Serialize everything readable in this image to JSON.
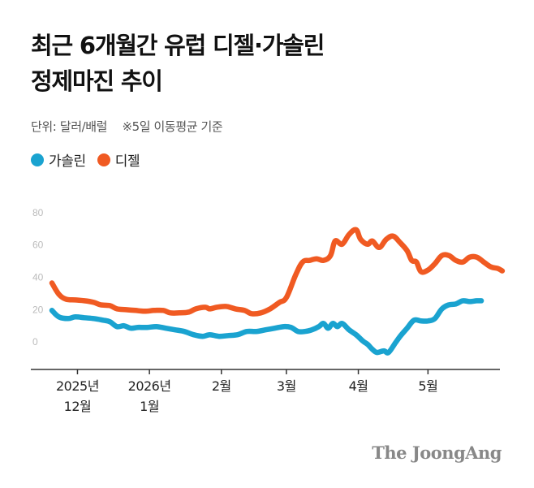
{
  "header": {
    "title_line1": "최근 6개월간 유럽 디젤·가솔린",
    "title_line2": "정제마진 추이",
    "unit": "단위: 달러/배럴",
    "note": "※5일 이동평균 기준"
  },
  "legend": {
    "gasoline": "가솔린",
    "diesel": "디젤"
  },
  "brand": "The JoongAng",
  "colors": {
    "gasoline": "#1aa3d0",
    "diesel": "#f05a22",
    "axis": "#333333",
    "tick_label": "#bbbbbb",
    "grid": "#eeeeee"
  },
  "chart_data": {
    "type": "line",
    "ylim": [
      -10,
      85
    ],
    "yticks": [
      0,
      20,
      40,
      60,
      80
    ],
    "grid": false,
    "xlim": [
      "2025-11-20",
      "2026-05-25"
    ],
    "x_ticks": [
      {
        "x": "2025-12-01",
        "label_line1": "2025년",
        "label_line2": "12월"
      },
      {
        "x": "2026-01-01",
        "label_line1": "2026년",
        "label_line2": "1월"
      },
      {
        "x": "2026-02-01",
        "label_line1": "2월",
        "label_line2": ""
      },
      {
        "x": "2026-03-01",
        "label_line1": "3월",
        "label_line2": ""
      },
      {
        "x": "2026-04-01",
        "label_line1": "4월",
        "label_line2": ""
      },
      {
        "x": "2026-05-01",
        "label_line1": "5월",
        "label_line2": ""
      }
    ],
    "series": [
      {
        "name": "가솔린",
        "color": "#1aa3d0",
        "points": [
          [
            "2025-11-20",
            23
          ],
          [
            "2025-11-23",
            19
          ],
          [
            "2025-11-27",
            18
          ],
          [
            "2025-11-30",
            19
          ],
          [
            "2025-12-04",
            18.5
          ],
          [
            "2025-12-08",
            18
          ],
          [
            "2025-12-12",
            17
          ],
          [
            "2025-12-15",
            16
          ],
          [
            "2025-12-18",
            13
          ],
          [
            "2025-12-21",
            13.5
          ],
          [
            "2025-12-24",
            12
          ],
          [
            "2025-12-27",
            12.5
          ],
          [
            "2025-12-31",
            12.5
          ],
          [
            "2026-01-04",
            13
          ],
          [
            "2026-01-08",
            12
          ],
          [
            "2026-01-12",
            11
          ],
          [
            "2026-01-16",
            10
          ],
          [
            "2026-01-20",
            8
          ],
          [
            "2026-01-24",
            7
          ],
          [
            "2026-01-27",
            8
          ],
          [
            "2026-01-31",
            7
          ],
          [
            "2026-02-04",
            7.5
          ],
          [
            "2026-02-08",
            8
          ],
          [
            "2026-02-12",
            10
          ],
          [
            "2026-02-16",
            10
          ],
          [
            "2026-02-20",
            11
          ],
          [
            "2026-02-24",
            12
          ],
          [
            "2026-02-28",
            13
          ],
          [
            "2026-03-03",
            12.5
          ],
          [
            "2026-03-06",
            10
          ],
          [
            "2026-03-09",
            10
          ],
          [
            "2026-03-12",
            11
          ],
          [
            "2026-03-15",
            13
          ],
          [
            "2026-03-17",
            15
          ],
          [
            "2026-03-19",
            12
          ],
          [
            "2026-03-21",
            15
          ],
          [
            "2026-03-23",
            13
          ],
          [
            "2026-03-25",
            15
          ],
          [
            "2026-03-28",
            11
          ],
          [
            "2026-03-31",
            8
          ],
          [
            "2026-04-03",
            4
          ],
          [
            "2026-04-05",
            2
          ],
          [
            "2026-04-07",
            -1
          ],
          [
            "2026-04-09",
            -3
          ],
          [
            "2026-04-12",
            -2
          ],
          [
            "2026-04-14",
            -3
          ],
          [
            "2026-04-17",
            3
          ],
          [
            "2026-04-19",
            7
          ],
          [
            "2026-04-22",
            12
          ],
          [
            "2026-04-25",
            17
          ],
          [
            "2026-04-28",
            16.5
          ],
          [
            "2026-05-01",
            16.5
          ],
          [
            "2026-05-04",
            18
          ],
          [
            "2026-05-07",
            24
          ],
          [
            "2026-05-10",
            26.5
          ],
          [
            "2026-05-13",
            27
          ],
          [
            "2026-05-16",
            29
          ],
          [
            "2026-05-19",
            28.5
          ],
          [
            "2026-05-22",
            29
          ],
          [
            "2026-05-24",
            29
          ]
        ]
      },
      {
        "name": "디젤",
        "color": "#f05a22",
        "points": [
          [
            "2025-11-20",
            40
          ],
          [
            "2025-11-23",
            33
          ],
          [
            "2025-11-26",
            30
          ],
          [
            "2025-11-30",
            29.5
          ],
          [
            "2025-12-04",
            29
          ],
          [
            "2025-12-08",
            28
          ],
          [
            "2025-12-11",
            26.5
          ],
          [
            "2025-12-15",
            26
          ],
          [
            "2025-12-18",
            24
          ],
          [
            "2025-12-22",
            23.5
          ],
          [
            "2025-12-26",
            23
          ],
          [
            "2025-12-30",
            22.5
          ],
          [
            "2026-01-03",
            23
          ],
          [
            "2026-01-07",
            23
          ],
          [
            "2026-01-10",
            21.5
          ],
          [
            "2026-01-14",
            21.5
          ],
          [
            "2026-01-18",
            22
          ],
          [
            "2026-01-21",
            24
          ],
          [
            "2026-01-25",
            25
          ],
          [
            "2026-01-27",
            24
          ],
          [
            "2026-01-30",
            25
          ],
          [
            "2026-02-03",
            25.5
          ],
          [
            "2026-02-07",
            24
          ],
          [
            "2026-02-11",
            23
          ],
          [
            "2026-02-14",
            21
          ],
          [
            "2026-02-18",
            21.5
          ],
          [
            "2026-02-22",
            24
          ],
          [
            "2026-02-26",
            28
          ],
          [
            "2026-03-01",
            31
          ],
          [
            "2026-03-05",
            45
          ],
          [
            "2026-03-08",
            53
          ],
          [
            "2026-03-11",
            54
          ],
          [
            "2026-03-14",
            55
          ],
          [
            "2026-03-17",
            54
          ],
          [
            "2026-03-20",
            57
          ],
          [
            "2026-03-22",
            66
          ],
          [
            "2026-03-25",
            64
          ],
          [
            "2026-03-28",
            70
          ],
          [
            "2026-03-31",
            73
          ],
          [
            "2026-04-02",
            67
          ],
          [
            "2026-04-05",
            64
          ],
          [
            "2026-04-07",
            66
          ],
          [
            "2026-04-10",
            62
          ],
          [
            "2026-04-13",
            67
          ],
          [
            "2026-04-16",
            69
          ],
          [
            "2026-04-19",
            65
          ],
          [
            "2026-04-22",
            60
          ],
          [
            "2026-04-24",
            54
          ],
          [
            "2026-04-26",
            53
          ],
          [
            "2026-04-28",
            47
          ],
          [
            "2026-05-01",
            48
          ],
          [
            "2026-05-04",
            52
          ],
          [
            "2026-05-07",
            57
          ],
          [
            "2026-05-10",
            57
          ],
          [
            "2026-05-13",
            54
          ],
          [
            "2026-05-16",
            53
          ],
          [
            "2026-05-19",
            56
          ],
          [
            "2026-05-22",
            56
          ],
          [
            "2026-05-25",
            53
          ],
          [
            "2026-05-28",
            50
          ],
          [
            "2026-05-31",
            49
          ],
          [
            "2026-06-02",
            47.5
          ]
        ]
      }
    ]
  }
}
